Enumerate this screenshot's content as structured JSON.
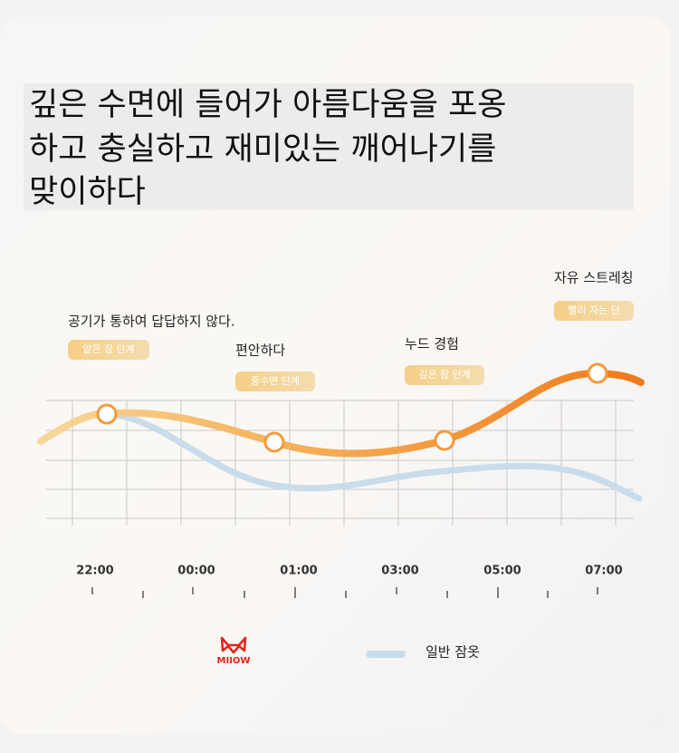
{
  "title": [
    "깊은 수면에 들어가 아름다움을 포옹",
    "하고 충실하고 재미있는 깨어나기를",
    "맞이하다"
  ],
  "annotations": [
    {
      "text": "공기가 통하여 답답하지 않다.",
      "stage": "얕은 잠 단계"
    },
    {
      "text": "편안하다",
      "stage": "중수면 단계"
    },
    {
      "text": "누드 경험",
      "stage": "깊은 잠 단계"
    },
    {
      "text": "자유 스트레칭",
      "stage": "빨리 자는 단"
    }
  ],
  "time_labels": [
    "22:00",
    "00:00",
    "01:00",
    "03:00",
    "05:00",
    "07:00"
  ],
  "legend": {
    "brand": "MIIOW",
    "other": "일반 잠옷"
  }
}
